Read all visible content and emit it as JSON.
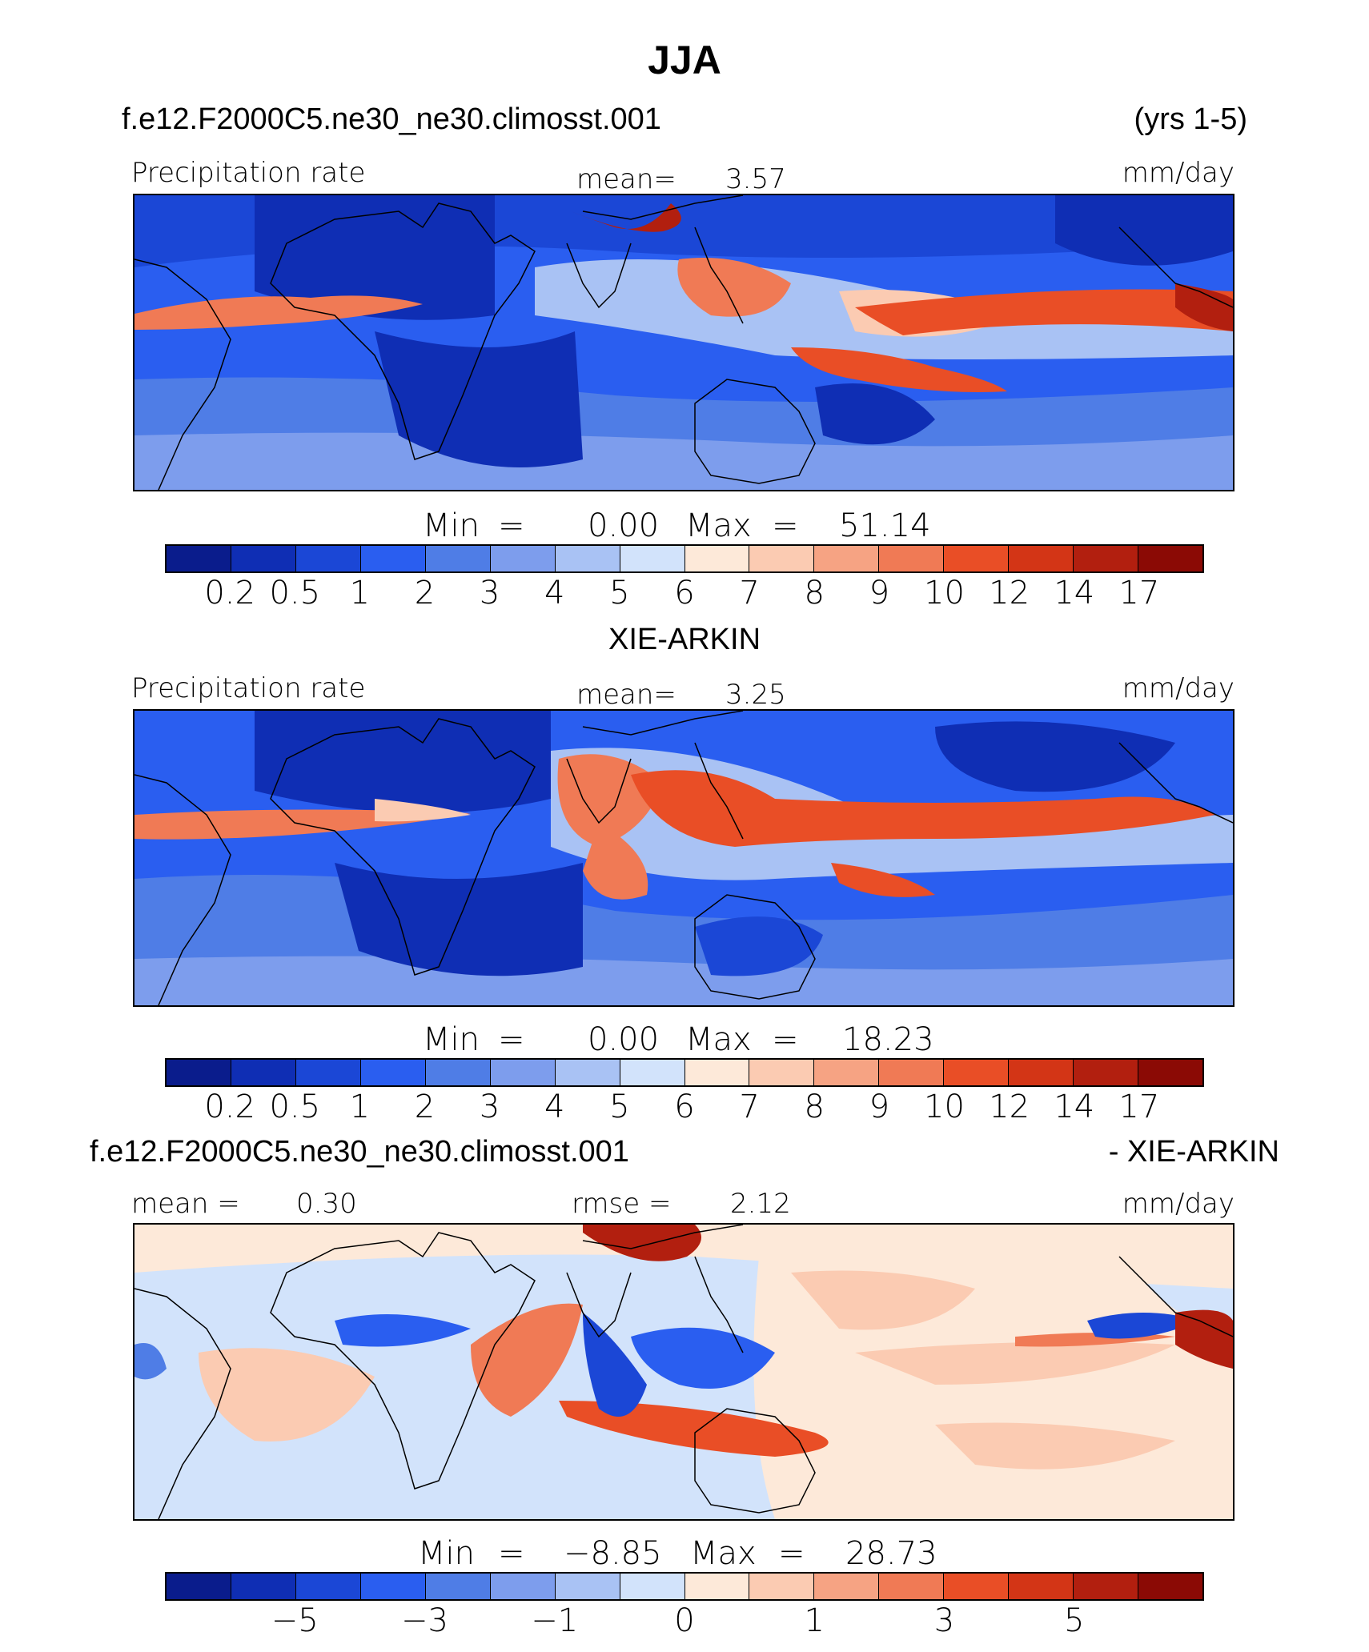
{
  "page_title": "JJA",
  "colors": {
    "scale": [
      "#0a1c8c",
      "#0f2eb4",
      "#1b47d6",
      "#2a5ef0",
      "#4f7de6",
      "#7d9ded",
      "#a9c2f4",
      "#d2e3fb",
      "#fde9d9",
      "#fbcbb2",
      "#f6a383",
      "#f07a55",
      "#e94e26",
      "#d33516",
      "#b21f0f",
      "#8b0a05"
    ],
    "land": "#000000"
  },
  "panels": [
    {
      "dataset_label": "f.e12.F2000C5.ne30_ne30.climosst.001",
      "right_label": "(yrs 1-5)",
      "variable": "Precipitation rate",
      "mean_label": "mean=",
      "mean_value": "3.57",
      "units": "mm/day",
      "min_label": "Min",
      "min_value": "0.00",
      "max_label": "Max",
      "max_value": "51.14",
      "ticks": [
        "0.2",
        "0.5",
        "1",
        "2",
        "3",
        "4",
        "5",
        "6",
        "7",
        "8",
        "9",
        "10",
        "12",
        "14",
        "17"
      ]
    },
    {
      "dataset_label": "XIE-ARKIN",
      "variable": "Precipitation rate",
      "mean_label": "mean=",
      "mean_value": "3.25",
      "units": "mm/day",
      "min_label": "Min",
      "min_value": "0.00",
      "max_label": "Max",
      "max_value": "18.23",
      "ticks": [
        "0.2",
        "0.5",
        "1",
        "2",
        "3",
        "4",
        "5",
        "6",
        "7",
        "8",
        "9",
        "10",
        "12",
        "14",
        "17"
      ]
    },
    {
      "dataset_label": "f.e12.F2000C5.ne30_ne30.climosst.001",
      "right_label": "- XIE-ARKIN",
      "mean_label": "mean =",
      "mean_value": "0.30",
      "rmse_label": "rmse =",
      "rmse_value": "2.12",
      "units": "mm/day",
      "min_label": "Min",
      "min_value": "−8.85",
      "max_label": "Max",
      "max_value": "28.73",
      "ticks": [
        "−5",
        "−3",
        "−1",
        "0",
        "1",
        "3",
        "5"
      ]
    }
  ],
  "chart_data": [
    {
      "type": "heatmap",
      "title": "JJA",
      "subtitle": "f.e12.F2000C5.ne30_ne30.climosst.001 (yrs 1-5)",
      "variable": "Precipitation rate",
      "units": "mm/day",
      "mean": 3.57,
      "min": 0.0,
      "max": 51.14,
      "levels": [
        0.2,
        0.5,
        1,
        2,
        3,
        4,
        5,
        6,
        7,
        8,
        9,
        10,
        12,
        14,
        17
      ]
    },
    {
      "type": "heatmap",
      "subtitle": "XIE-ARKIN",
      "variable": "Precipitation rate",
      "units": "mm/day",
      "mean": 3.25,
      "min": 0.0,
      "max": 18.23,
      "levels": [
        0.2,
        0.5,
        1,
        2,
        3,
        4,
        5,
        6,
        7,
        8,
        9,
        10,
        12,
        14,
        17
      ]
    },
    {
      "type": "heatmap",
      "subtitle": "f.e12.F2000C5.ne30_ne30.climosst.001 - XIE-ARKIN",
      "units": "mm/day",
      "mean": 0.3,
      "rmse": 2.12,
      "min": -8.85,
      "max": 28.73,
      "levels": [
        -5,
        -3,
        -1,
        0,
        1,
        3,
        5
      ]
    }
  ]
}
